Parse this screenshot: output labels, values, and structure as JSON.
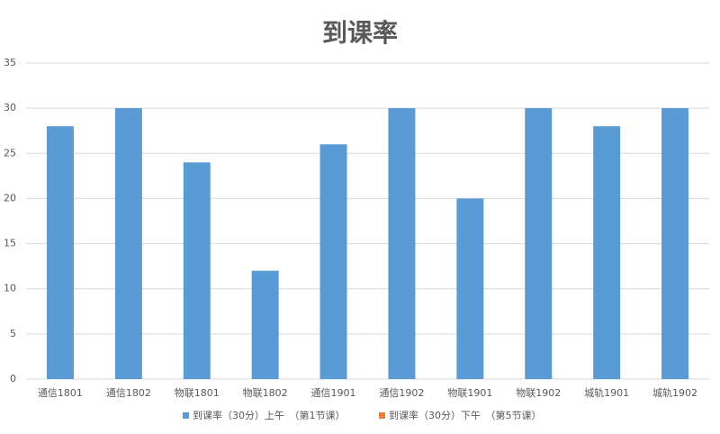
{
  "chart_data": {
    "type": "bar",
    "title": "到课率",
    "categories": [
      "通信1801",
      "通信1802",
      "物联1801",
      "物联1802",
      "通信1901",
      "通信1902",
      "物联1901",
      "物联1902",
      "城轨1901",
      "城轨1902"
    ],
    "series": [
      {
        "name": "到课率（30分）上午　（第1节课）",
        "color": "#5b9bd5",
        "values": [
          28,
          30,
          24,
          12,
          26,
          30,
          20,
          30,
          28,
          30
        ]
      },
      {
        "name": "到课率（30分）下午　（第5节课）",
        "color": "#ed7d31",
        "values": [
          null,
          null,
          null,
          null,
          null,
          null,
          null,
          null,
          null,
          null
        ]
      }
    ],
    "ylim": [
      0,
      35
    ],
    "yticks": [
      0,
      5,
      10,
      15,
      20,
      25,
      30,
      35
    ],
    "grid": true,
    "legend": "bottom"
  }
}
